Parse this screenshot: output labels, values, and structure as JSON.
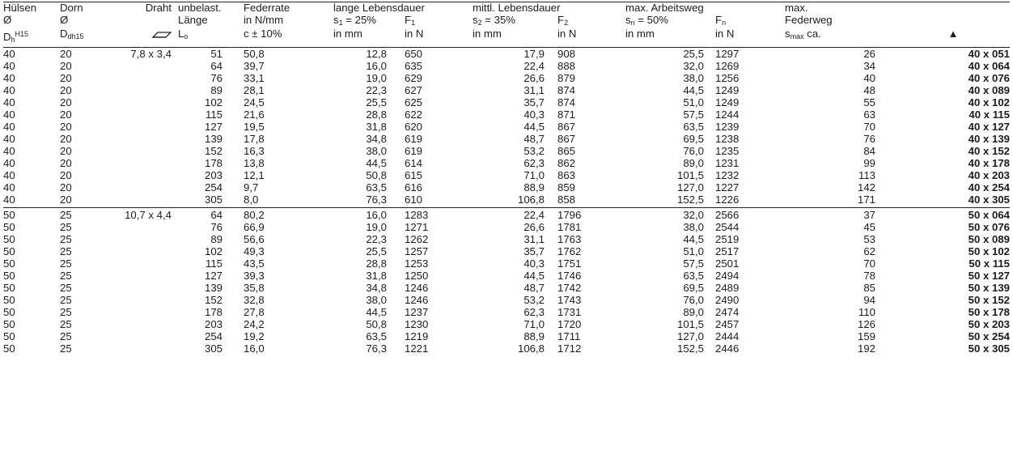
{
  "headers": {
    "huelsen": [
      "Hülsen",
      "Ø",
      "D",
      "h",
      "H15"
    ],
    "dorn": [
      "Dorn",
      "Ø",
      "D",
      "dh15"
    ],
    "draht": "Draht",
    "laenge": [
      "unbelast.",
      "Länge",
      "L",
      "o"
    ],
    "federrate": [
      "Federrate",
      "in N/mm",
      "c ± 10%"
    ],
    "lange": [
      "lange Lebensdauer",
      "s",
      "1",
      " = 25%",
      "F",
      "1",
      "in mm",
      "in N"
    ],
    "mittl": [
      "mittl. Lebensdauer",
      "s",
      "2",
      " = 35%",
      "F",
      "2",
      "in mm",
      "in N"
    ],
    "max_arbeit": [
      "max. Arbeitsweg",
      "s",
      "n",
      " = 50%",
      "F",
      "n",
      "in mm",
      "in N"
    ],
    "max_feder": [
      "max.",
      "Federweg",
      "s",
      "max",
      " ca."
    ],
    "marker_icon": "up-triangle-icon",
    "wire_icon": "flat-wire-icon"
  },
  "groups": [
    {
      "rows": [
        [
          "40",
          "20",
          "7,8 x 3,4",
          "51",
          "50,8",
          "12,8",
          "650",
          "17,9",
          "908",
          "25,5",
          "1297",
          "26",
          "40 x 051"
        ],
        [
          "40",
          "20",
          "",
          "64",
          "39,7",
          "16,0",
          "635",
          "22,4",
          "888",
          "32,0",
          "1269",
          "34",
          "40 x 064"
        ],
        [
          "40",
          "20",
          "",
          "76",
          "33,1",
          "19,0",
          "629",
          "26,6",
          "879",
          "38,0",
          "1256",
          "40",
          "40 x 076"
        ],
        [
          "40",
          "20",
          "",
          "89",
          "28,1",
          "22,3",
          "627",
          "31,1",
          "874",
          "44,5",
          "1249",
          "48",
          "40 x 089"
        ],
        [
          "40",
          "20",
          "",
          "102",
          "24,5",
          "25,5",
          "625",
          "35,7",
          "874",
          "51,0",
          "1249",
          "55",
          "40 x 102"
        ],
        [
          "40",
          "20",
          "",
          "115",
          "21,6",
          "28,8",
          "622",
          "40,3",
          "871",
          "57,5",
          "1244",
          "63",
          "40 x 115"
        ],
        [
          "40",
          "20",
          "",
          "127",
          "19,5",
          "31,8",
          "620",
          "44,5",
          "867",
          "63,5",
          "1239",
          "70",
          "40 x 127"
        ],
        [
          "40",
          "20",
          "",
          "139",
          "17,8",
          "34,8",
          "619",
          "48,7",
          "867",
          "69,5",
          "1238",
          "76",
          "40 x 139"
        ],
        [
          "40",
          "20",
          "",
          "152",
          "16,3",
          "38,0",
          "619",
          "53,2",
          "865",
          "76,0",
          "1235",
          "84",
          "40 x 152"
        ],
        [
          "40",
          "20",
          "",
          "178",
          "13,8",
          "44,5",
          "614",
          "62,3",
          "862",
          "89,0",
          "1231",
          "99",
          "40 x 178"
        ],
        [
          "40",
          "20",
          "",
          "203",
          "12,1",
          "50,8",
          "615",
          "71,0",
          "863",
          "101,5",
          "1232",
          "113",
          "40 x 203"
        ],
        [
          "40",
          "20",
          "",
          "254",
          "9,7",
          "63,5",
          "616",
          "88,9",
          "859",
          "127,0",
          "1227",
          "142",
          "40 x 254"
        ],
        [
          "40",
          "20",
          "",
          "305",
          "8,0",
          "76,3",
          "610",
          "106,8",
          "858",
          "152,5",
          "1226",
          "171",
          "40 x 305"
        ]
      ]
    },
    {
      "rows": [
        [
          "50",
          "25",
          "10,7 x 4,4",
          "64",
          "80,2",
          "16,0",
          "1283",
          "22,4",
          "1796",
          "32,0",
          "2566",
          "37",
          "50 x 064"
        ],
        [
          "50",
          "25",
          "",
          "76",
          "66,9",
          "19,0",
          "1271",
          "26,6",
          "1781",
          "38,0",
          "2544",
          "45",
          "50 x 076"
        ],
        [
          "50",
          "25",
          "",
          "89",
          "56,6",
          "22,3",
          "1262",
          "31,1",
          "1763",
          "44,5",
          "2519",
          "53",
          "50 x 089"
        ],
        [
          "50",
          "25",
          "",
          "102",
          "49,3",
          "25,5",
          "1257",
          "35,7",
          "1762",
          "51,0",
          "2517",
          "62",
          "50 x 102"
        ],
        [
          "50",
          "25",
          "",
          "115",
          "43,5",
          "28,8",
          "1253",
          "40,3",
          "1751",
          "57,5",
          "2501",
          "70",
          "50 x 115"
        ],
        [
          "50",
          "25",
          "",
          "127",
          "39,3",
          "31,8",
          "1250",
          "44,5",
          "1746",
          "63,5",
          "2494",
          "78",
          "50 x 127"
        ],
        [
          "50",
          "25",
          "",
          "139",
          "35,8",
          "34,8",
          "1246",
          "48,7",
          "1742",
          "69,5",
          "2489",
          "85",
          "50 x 139"
        ],
        [
          "50",
          "25",
          "",
          "152",
          "32,8",
          "38,0",
          "1246",
          "53,2",
          "1743",
          "76,0",
          "2490",
          "94",
          "50 x 152"
        ],
        [
          "50",
          "25",
          "",
          "178",
          "27,8",
          "44,5",
          "1237",
          "62,3",
          "1731",
          "89,0",
          "2474",
          "110",
          "50 x 178"
        ],
        [
          "50",
          "25",
          "",
          "203",
          "24,2",
          "50,8",
          "1230",
          "71,0",
          "1720",
          "101,5",
          "2457",
          "126",
          "50 x 203"
        ],
        [
          "50",
          "25",
          "",
          "254",
          "19,2",
          "63,5",
          "1219",
          "88,9",
          "1711",
          "127,0",
          "2444",
          "159",
          "50 x 254"
        ],
        [
          "50",
          "25",
          "",
          "305",
          "16,0",
          "76,3",
          "1221",
          "106,8",
          "1712",
          "152,5",
          "2446",
          "192",
          "50 x 305"
        ]
      ]
    }
  ]
}
